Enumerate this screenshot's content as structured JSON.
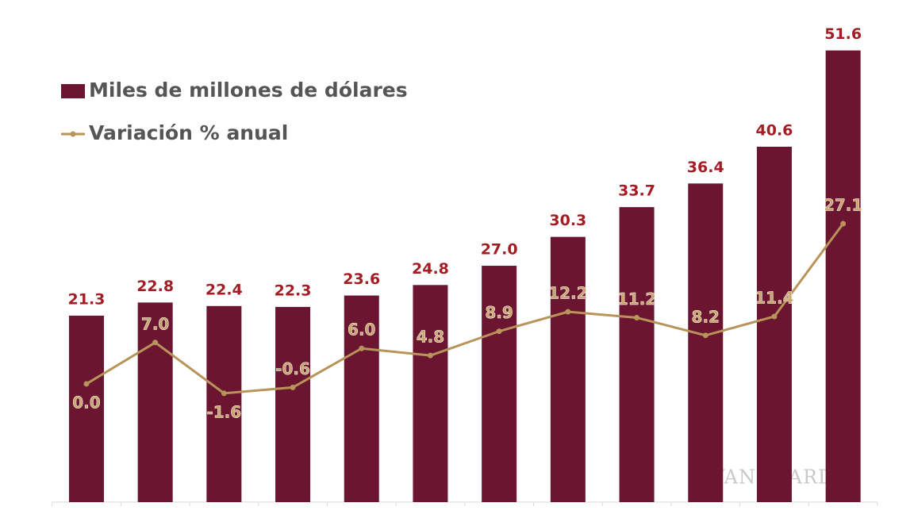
{
  "chart_data": {
    "type": "bar-line",
    "categories": [
      null,
      null,
      null,
      null,
      null,
      null,
      null,
      null,
      null,
      null,
      null,
      null
    ],
    "series": [
      {
        "name": "Miles de millones de dólares",
        "type": "bar",
        "color": "#6b1530",
        "label_color": "#a51d24",
        "values": [
          21.3,
          22.8,
          22.4,
          22.3,
          23.6,
          24.8,
          27.0,
          30.3,
          33.7,
          36.4,
          40.6,
          51.6
        ],
        "value_labels": [
          "21.3",
          "22.8",
          "22.4",
          "22.3",
          "23.6",
          "24.8",
          "27.0",
          "30.3",
          "33.7",
          "36.4",
          "40.6",
          "51.6"
        ]
      },
      {
        "name": "Variación % anual",
        "type": "line",
        "axis": "y2",
        "color": "#b8935a",
        "label_color": "#c9a46c",
        "values": [
          0.0,
          7.0,
          -1.6,
          -0.6,
          6.0,
          4.8,
          8.9,
          12.2,
          11.2,
          8.2,
          11.4,
          27.1
        ],
        "value_labels": [
          "0.0",
          "7.0",
          "-1.6",
          "-0.6",
          "6.0",
          "4.8",
          "8.9",
          "12.2",
          "11.2",
          "8.2",
          "11.4",
          "27.1"
        ]
      }
    ],
    "ylim": [
      0,
      57
    ],
    "y2lim": [
      -20,
      64.4
    ],
    "legend": "top-left",
    "watermark": "VANGUARDIA"
  }
}
